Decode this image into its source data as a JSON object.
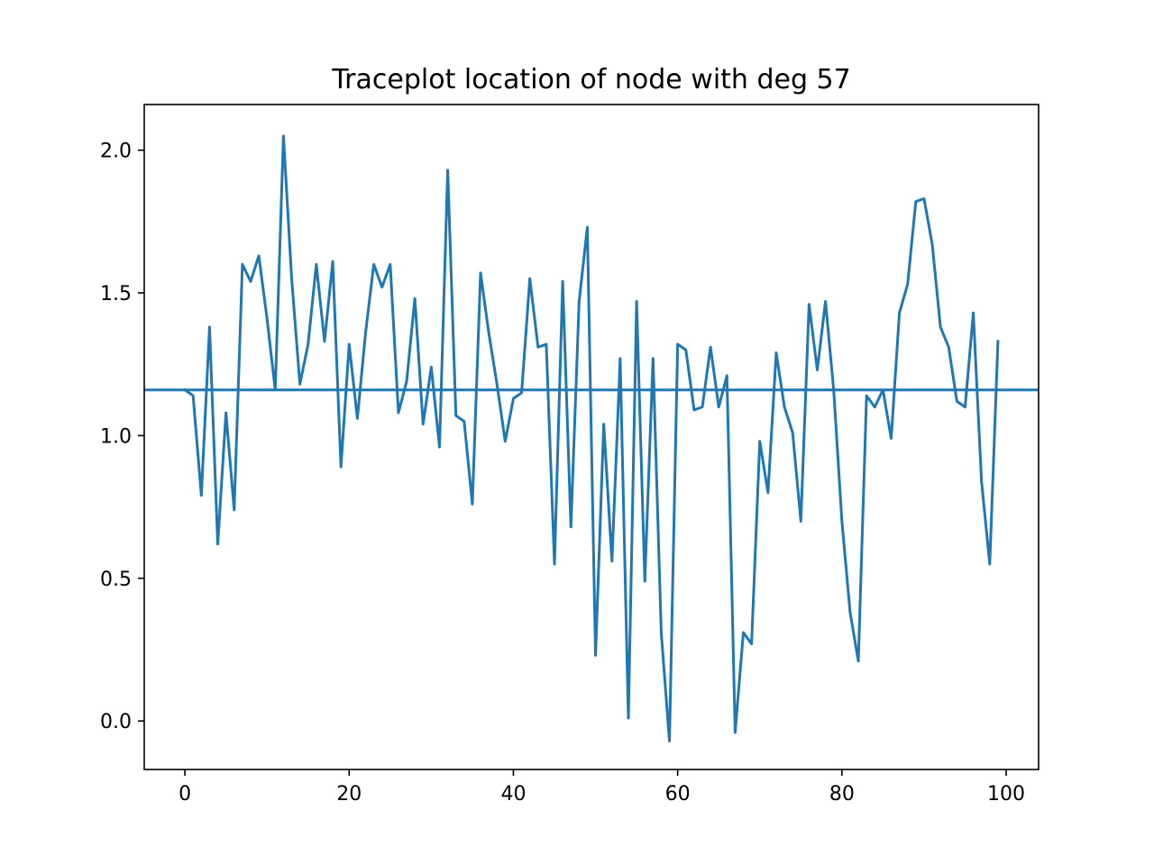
{
  "chart_data": {
    "type": "line",
    "title": "Traceplot location of node with deg 57",
    "xlabel": "",
    "ylabel": "",
    "xlim": [
      -4.95,
      103.95
    ],
    "ylim": [
      -0.17,
      2.16
    ],
    "xticks": [
      0,
      20,
      40,
      60,
      80,
      100
    ],
    "yticks": [
      0.0,
      0.5,
      1.0,
      1.5,
      2.0
    ],
    "xtick_labels": [
      "0",
      "20",
      "40",
      "60",
      "80",
      "100"
    ],
    "ytick_labels": [
      "0.0",
      "0.5",
      "1.0",
      "1.5",
      "2.0"
    ],
    "grid": false,
    "series": [
      {
        "color": "#1f77b4",
        "x": [
          0,
          1,
          2,
          3,
          4,
          5,
          6,
          7,
          8,
          9,
          10,
          11,
          12,
          13,
          14,
          15,
          16,
          17,
          18,
          19,
          20,
          21,
          22,
          23,
          24,
          25,
          26,
          27,
          28,
          29,
          30,
          31,
          32,
          33,
          34,
          35,
          36,
          37,
          38,
          39,
          40,
          41,
          42,
          43,
          44,
          45,
          46,
          47,
          48,
          49,
          50,
          51,
          52,
          53,
          54,
          55,
          56,
          57,
          58,
          59,
          60,
          61,
          62,
          63,
          64,
          65,
          66,
          67,
          68,
          69,
          70,
          71,
          72,
          73,
          74,
          75,
          76,
          77,
          78,
          79,
          80,
          81,
          82,
          83,
          84,
          85,
          86,
          87,
          88,
          89,
          90,
          91,
          92,
          93,
          94,
          95,
          96,
          97,
          98,
          99
        ],
        "y": [
          1.16,
          1.14,
          0.79,
          1.38,
          0.62,
          1.08,
          0.74,
          1.6,
          1.54,
          1.63,
          1.41,
          1.16,
          2.05,
          1.55,
          1.18,
          1.32,
          1.6,
          1.33,
          1.61,
          0.89,
          1.32,
          1.06,
          1.36,
          1.6,
          1.52,
          1.6,
          1.08,
          1.19,
          1.48,
          1.04,
          1.24,
          0.96,
          1.93,
          1.07,
          1.05,
          0.76,
          1.57,
          1.36,
          1.18,
          0.98,
          1.13,
          1.15,
          1.55,
          1.31,
          1.32,
          0.55,
          1.54,
          0.68,
          1.47,
          1.73,
          0.23,
          1.04,
          0.56,
          1.27,
          0.01,
          1.47,
          0.49,
          1.27,
          0.31,
          -0.07,
          1.32,
          1.3,
          1.09,
          1.1,
          1.31,
          1.1,
          1.21,
          -0.04,
          0.31,
          0.27,
          0.98,
          0.8,
          1.29,
          1.1,
          1.01,
          0.7,
          1.46,
          1.23,
          1.47,
          1.16,
          0.7,
          0.38,
          0.21,
          1.14,
          1.1,
          1.16,
          0.99,
          1.43,
          1.53,
          1.82,
          1.83,
          1.67,
          1.38,
          1.31,
          1.12,
          1.1,
          1.43,
          0.84,
          0.55,
          1.33
        ]
      }
    ],
    "hline": {
      "y": 1.16,
      "color": "#1f77b4"
    }
  }
}
